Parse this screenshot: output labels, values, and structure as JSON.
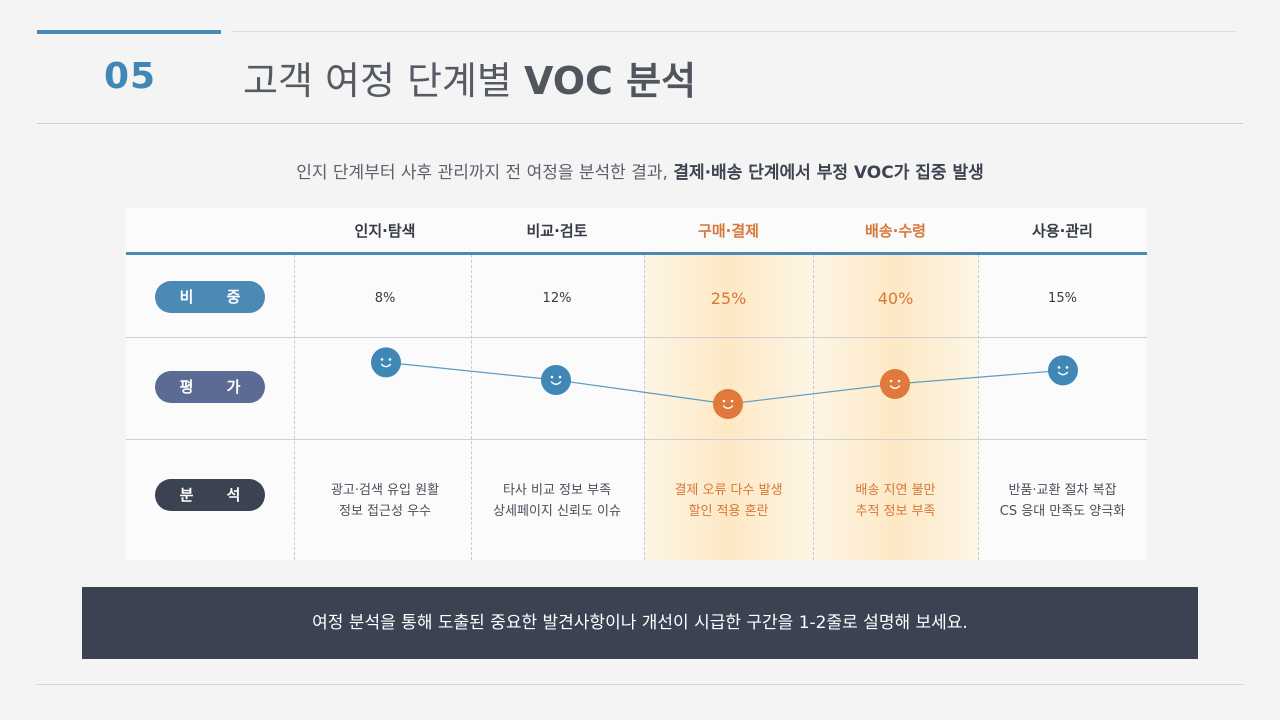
{
  "header": {
    "section_number": "05",
    "title_normal": "고객 여정 단계별 ",
    "title_bold": "VOC 분석"
  },
  "subtitle": {
    "normal": "인지 단계부터 사후 관리까지 전 여정을 분석한 결과, ",
    "bold": "결제·배송 단계에서 부정 VOC가 집중 발생"
  },
  "table": {
    "row_labels": {
      "share": "비 중",
      "rating": "평 가",
      "analysis": "분 석"
    },
    "stages": [
      {
        "name": "인지·탐색",
        "share": "8%",
        "rating": "positive",
        "analysis": [
          "광고·검색 유입 원활",
          "정보 접근성 우수"
        ],
        "highlight": false
      },
      {
        "name": "비교·검토",
        "share": "12%",
        "rating": "positive",
        "analysis": [
          "타사 비교 정보 부족",
          "상세페이지 신뢰도 이슈"
        ],
        "highlight": false
      },
      {
        "name": "구매·결제",
        "share": "25%",
        "rating": "negative",
        "analysis": [
          "결제 오류 다수 발생",
          "할인 적용 혼란"
        ],
        "highlight": true
      },
      {
        "name": "배송·수령",
        "share": "40%",
        "rating": "negative",
        "analysis": [
          "배송 지연 불만",
          "추적 정보 부족"
        ],
        "highlight": true
      },
      {
        "name": "사용·관리",
        "share": "15%",
        "rating": "positive",
        "analysis": [
          "반품·교환 절차 복잡",
          "CS 응대 만족도 양극화"
        ],
        "highlight": false
      }
    ],
    "rating_scores": [
      0.82,
      0.6,
      0.3,
      0.55,
      0.72
    ],
    "colors": {
      "positive": "#3f88b5",
      "negative": "#e07a3c",
      "line": "#5b9cc4"
    },
    "icon": "smiley-face-icon"
  },
  "note": "여정 분석을 통해 도출된 중요한 발견사항이나 개선이 시급한 구간을  1-2줄로 설명해 보세요."
}
